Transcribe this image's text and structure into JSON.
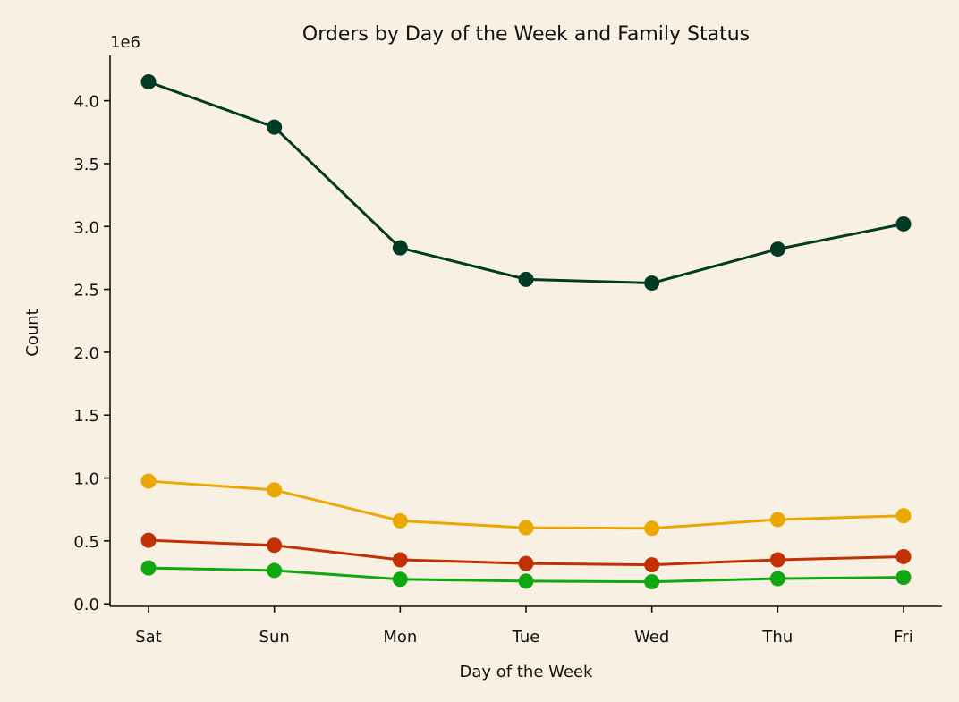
{
  "chart_data": {
    "type": "line",
    "title": "Orders by Day of the Week and Family Status",
    "xlabel": "Day of the Week",
    "ylabel": "Count",
    "y_offset_label": "1e6",
    "categories": [
      "Sat",
      "Sun",
      "Mon",
      "Tue",
      "Wed",
      "Thu",
      "Fri"
    ],
    "ylim": [
      -0.02,
      4.36
    ],
    "yticks": [
      0.0,
      0.5,
      1.0,
      1.5,
      2.0,
      2.5,
      3.0,
      3.5,
      4.0
    ],
    "ytick_labels": [
      "0.0",
      "0.5",
      "1.0",
      "1.5",
      "2.0",
      "2.5",
      "3.0",
      "3.5",
      "4.0"
    ],
    "grid": false,
    "series": [
      {
        "color": "#003b24",
        "values": [
          4.15,
          3.79,
          2.83,
          2.58,
          2.55,
          2.82,
          3.02
        ]
      },
      {
        "color": "#eba800",
        "values": [
          0.975,
          0.905,
          0.66,
          0.605,
          0.6,
          0.67,
          0.7
        ]
      },
      {
        "color": "#c33004",
        "values": [
          0.505,
          0.465,
          0.35,
          0.32,
          0.31,
          0.35,
          0.375
        ]
      },
      {
        "color": "#0fa80f",
        "values": [
          0.285,
          0.265,
          0.195,
          0.18,
          0.175,
          0.2,
          0.21
        ]
      }
    ]
  }
}
